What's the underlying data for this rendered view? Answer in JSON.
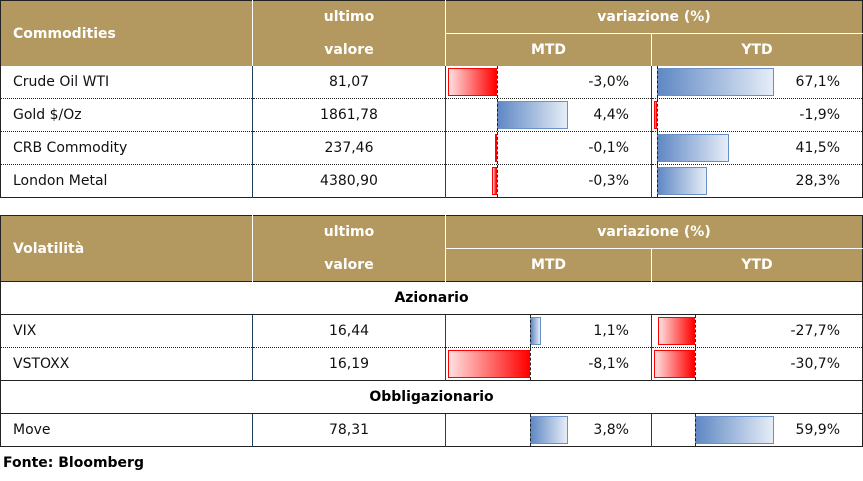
{
  "commodities": {
    "title": "Commodities",
    "col_last_1": "ultimo",
    "col_last_2": "valore",
    "col_change": "variazione (%)",
    "col_mtd": "MTD",
    "col_ytd": "YTD",
    "rows": [
      {
        "name": "Crude Oil WTI",
        "value": "81,07",
        "mtd": "-3,0%",
        "ytd": "67,1%",
        "mtd_n": -3.0,
        "ytd_n": 67.1
      },
      {
        "name": "Gold $/Oz",
        "value": "1861,78",
        "mtd": "4,4%",
        "ytd": "-1,9%",
        "mtd_n": 4.4,
        "ytd_n": -1.9
      },
      {
        "name": "CRB Commodity",
        "value": "237,46",
        "mtd": "-0,1%",
        "ytd": "41,5%",
        "mtd_n": -0.1,
        "ytd_n": 41.5
      },
      {
        "name": "London Metal",
        "value": "4380,90",
        "mtd": "-0,3%",
        "ytd": "28,3%",
        "mtd_n": -0.3,
        "ytd_n": 28.3
      }
    ]
  },
  "volatility": {
    "title": "Volatilità",
    "col_last_1": "ultimo",
    "col_last_2": "valore",
    "col_change": "variazione (%)",
    "col_mtd": "MTD",
    "col_ytd": "YTD",
    "section_equity": "Azionario",
    "section_bond": "Obbligazionario",
    "rows": [
      {
        "name": "VIX",
        "value": "16,44",
        "mtd": "1,1%",
        "ytd": "-27,7%",
        "mtd_n": 1.1,
        "ytd_n": -27.7
      },
      {
        "name": "VSTOXX",
        "value": "16,19",
        "mtd": "-8,1%",
        "ytd": "-30,7%",
        "mtd_n": -8.1,
        "ytd_n": -30.7
      },
      {
        "name": "Move",
        "value": "78,31",
        "mtd": "3,8%",
        "ytd": "59,9%",
        "mtd_n": 3.8,
        "ytd_n": 59.9
      }
    ]
  },
  "source": "Fonte: Bloomberg"
}
